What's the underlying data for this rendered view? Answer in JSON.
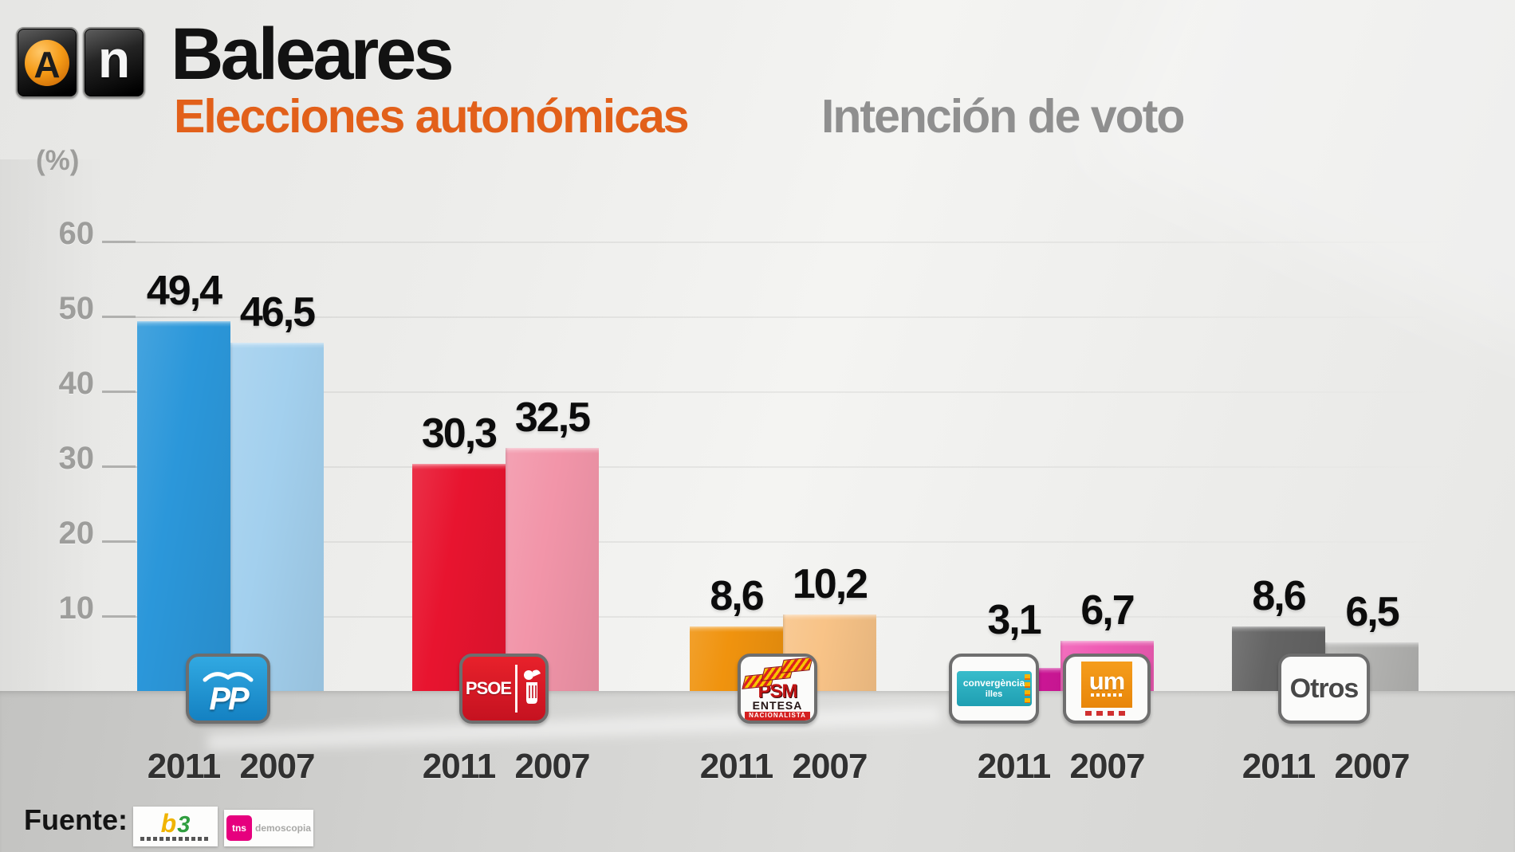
{
  "header": {
    "logo": {
      "a_glyph": "A",
      "n_glyph": "n"
    },
    "title": "Baleares",
    "subtitle": "Elecciones autonómicas",
    "right_title": "Intención de voto"
  },
  "chart_data": {
    "type": "bar",
    "title": "Baleares — Elecciones autonómicas — Intención de voto",
    "unit_label": "(%)",
    "ylabel": "(%)",
    "ylim": [
      0,
      60
    ],
    "yticks": [
      60,
      50,
      40,
      30,
      20,
      10
    ],
    "grid": true,
    "legend_position": "none",
    "series_years": [
      "2011",
      "2007"
    ],
    "groups": [
      {
        "id": "pp",
        "party": "PP",
        "values": [
          49.4,
          46.5
        ],
        "display": [
          "49,4",
          "46,5"
        ],
        "colors": [
          "#2b97da",
          "#a3d0ee"
        ],
        "badges": [
          "pp"
        ]
      },
      {
        "id": "psoe",
        "party": "PSOE",
        "values": [
          30.3,
          32.5
        ],
        "display": [
          "30,3",
          "32,5"
        ],
        "colors": [
          "#e8142f",
          "#f295a9"
        ],
        "badges": [
          "psoe"
        ]
      },
      {
        "id": "psm",
        "party": "PSM Entesa Nacionalista",
        "values": [
          8.6,
          10.2
        ],
        "display": [
          "8,6",
          "10,2"
        ],
        "colors": [
          "#f0930e",
          "#f8c387"
        ],
        "badges": [
          "psm"
        ]
      },
      {
        "id": "conv-um",
        "party": "Convergència per les Illes / Unió Mallorquina",
        "values": [
          3.1,
          6.7
        ],
        "display": [
          "3,1",
          "6,7"
        ],
        "colors": [
          "#d5179c",
          "#f05cb5"
        ],
        "badges": [
          "convergencia",
          "um"
        ]
      },
      {
        "id": "otros",
        "party": "Otros",
        "values": [
          8.6,
          6.5
        ],
        "display": [
          "8,6",
          "6,5"
        ],
        "colors": [
          "#646464",
          "#b3b3b1"
        ],
        "badges": [
          "otros"
        ]
      }
    ]
  },
  "badges": {
    "pp": {
      "label": "PP"
    },
    "psoe": {
      "label": "PSOE"
    },
    "psm": {
      "line1": "PSM",
      "line2": "ENTESA",
      "line3": "NACIONALISTA"
    },
    "convergencia": {
      "line1": "convergència",
      "line2": "illes"
    },
    "um": {
      "label": "um"
    },
    "otros": {
      "label": "Otros"
    }
  },
  "footer": {
    "source_label": "Fuente:",
    "logos": [
      {
        "id": "ib3",
        "glyph1": "b",
        "glyph2": "3"
      },
      {
        "id": "tns-demoscopia",
        "mark": "tns",
        "text": "demoscopia"
      }
    ]
  },
  "colors": {
    "accent_orange": "#e2601a",
    "title_gray": "#8f8f8f",
    "band_gray": "#d3d3d1"
  }
}
